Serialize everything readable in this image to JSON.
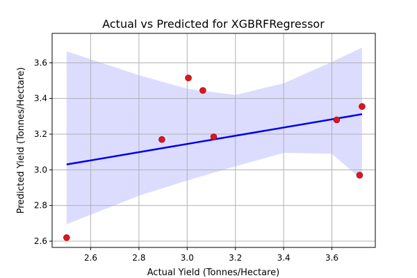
{
  "chart_data": {
    "type": "scatter",
    "title": "Actual vs Predicted for XGBRFRegressor",
    "xlabel": "Actual Yield (Tonnes/Hectare)",
    "ylabel": "Predicted Yield (Tonnes/Hectare)",
    "xlim": [
      2.44,
      3.78
    ],
    "ylim": [
      2.565,
      3.765
    ],
    "xticks": [
      2.6,
      2.8,
      3.0,
      3.2,
      3.4,
      3.6
    ],
    "yticks": [
      2.6,
      2.8,
      3.0,
      3.2,
      3.4,
      3.6
    ],
    "grid": true,
    "points": [
      {
        "x": 2.5,
        "y": 2.62
      },
      {
        "x": 2.895,
        "y": 3.17
      },
      {
        "x": 3.005,
        "y": 3.515
      },
      {
        "x": 3.065,
        "y": 3.445
      },
      {
        "x": 3.11,
        "y": 3.185
      },
      {
        "x": 3.62,
        "y": 3.28
      },
      {
        "x": 3.715,
        "y": 2.97
      },
      {
        "x": 3.725,
        "y": 3.355
      }
    ],
    "regression_line": {
      "x": [
        2.5,
        3.725
      ],
      "y": [
        3.03,
        3.312
      ]
    },
    "confidence_band": {
      "x": [
        2.5,
        2.8,
        3.0,
        3.2,
        3.4,
        3.6,
        3.725
      ],
      "upper": [
        3.665,
        3.53,
        3.455,
        3.42,
        3.485,
        3.605,
        3.685
      ],
      "lower": [
        2.695,
        2.855,
        2.94,
        3.02,
        3.095,
        3.09,
        2.945
      ]
    },
    "colors": {
      "points": "#d7191c",
      "point_edge": "#a00020",
      "line": "#0000ee",
      "band": "#d8d8ff",
      "grid": "#b0b0b0"
    }
  }
}
